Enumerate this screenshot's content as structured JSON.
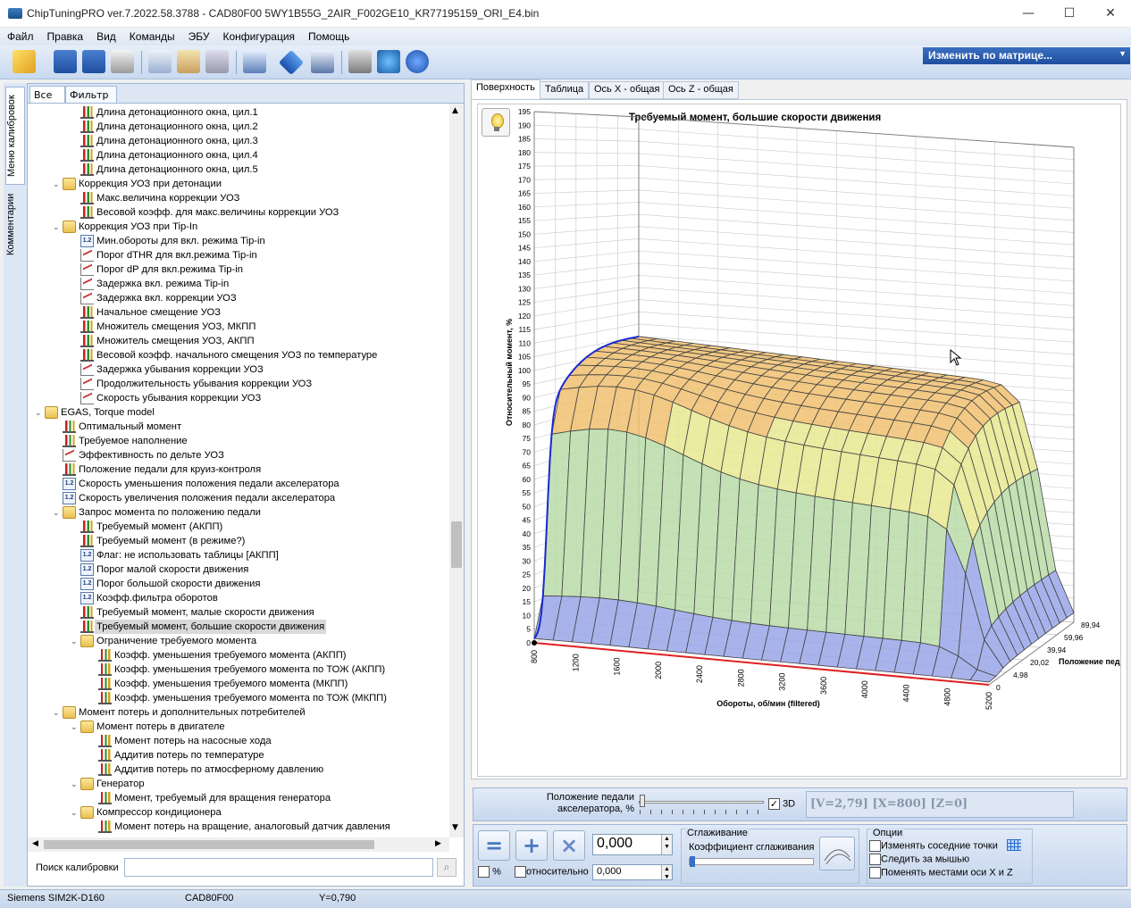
{
  "window": {
    "title": "ChipTuningPRO ver.7.2022.58.3788 - CAD80F00 5WY1B55G_2AIR_F002GE10_KR77195159_ORI_E4.bin",
    "minimize": "—",
    "maximize": "☐",
    "close": "✕"
  },
  "menu": [
    "Файл",
    "Правка",
    "Вид",
    "Команды",
    "ЭБУ",
    "Конфигурация",
    "Помощь"
  ],
  "matrix_button": "Изменить по матрице...",
  "side_tabs": [
    "Меню калибровок",
    "Комментарии"
  ],
  "filter_tabs": [
    "Все",
    "Фильтр"
  ],
  "tree": [
    {
      "label": "Длина детонационного окна, цил.1",
      "icon": "chart-icon",
      "level": 4
    },
    {
      "label": "Длина детонационного окна, цил.2",
      "icon": "chart-icon",
      "level": 4
    },
    {
      "label": "Длина детонационного окна, цил.3",
      "icon": "chart-icon",
      "level": 4
    },
    {
      "label": "Длина детонационного окна, цил.4",
      "icon": "chart-icon",
      "level": 4
    },
    {
      "label": "Длина детонационного окна, цил.5",
      "icon": "chart-icon",
      "level": 4
    },
    {
      "label": "Коррекция УОЗ при детонации",
      "icon": "folder-icon",
      "level": 3,
      "exp": "⌄"
    },
    {
      "label": "Макс.величина коррекции УОЗ",
      "icon": "chart-icon",
      "level": 4
    },
    {
      "label": "Весовой коэфф. для макс.величины коррекции УОЗ",
      "icon": "chart-icon",
      "level": 4
    },
    {
      "label": "Коррекция УОЗ при Tip-In",
      "icon": "folder-icon",
      "level": 3,
      "exp": "⌄"
    },
    {
      "label": "Мин.обороты для вкл. режима Tip-in",
      "icon": "number-icon",
      "level": 4
    },
    {
      "label": "Порог dTHR для вкл.режима Tip-in",
      "icon": "curve-icon",
      "level": 4
    },
    {
      "label": "Порог dP для вкл.режима Tip-in",
      "icon": "curve-icon",
      "level": 4
    },
    {
      "label": "Задержка вкл. режима Tip-in",
      "icon": "curve-icon",
      "level": 4
    },
    {
      "label": "Задержка вкл. коррекции УОЗ",
      "icon": "curve-icon",
      "level": 4
    },
    {
      "label": "Начальное смещение УОЗ",
      "icon": "chart-icon",
      "level": 4
    },
    {
      "label": "Множитель смещения УОЗ, МКПП",
      "icon": "chart-icon",
      "level": 4
    },
    {
      "label": "Множитель смещения УОЗ, АКПП",
      "icon": "chart-icon",
      "level": 4
    },
    {
      "label": "Весовой коэфф. начального смещения УОЗ по температуре",
      "icon": "chart-icon",
      "level": 4
    },
    {
      "label": "Задержка убывания коррекции УОЗ",
      "icon": "curve-icon",
      "level": 4
    },
    {
      "label": "Продолжительность убывания коррекции УОЗ",
      "icon": "curve-icon",
      "level": 4
    },
    {
      "label": "Скорость убывания коррекции УОЗ",
      "icon": "curve-icon",
      "level": 4
    },
    {
      "label": "EGAS, Torque model",
      "icon": "folder-icon",
      "level": 2,
      "exp": "⌄"
    },
    {
      "label": "Оптимальный момент",
      "icon": "chart-icon",
      "level": 3
    },
    {
      "label": "Требуемое наполнение",
      "icon": "chart-icon",
      "level": 3
    },
    {
      "label": "Эффективность по дельте УОЗ",
      "icon": "curve-icon",
      "level": 3
    },
    {
      "label": "Положение педали для круиз-контроля",
      "icon": "chart-icon",
      "level": 3
    },
    {
      "label": "Скорость уменьшения положения педали акселератора",
      "icon": "number-icon",
      "level": 3
    },
    {
      "label": "Скорость увеличения положения педали акселератора",
      "icon": "number-icon",
      "level": 3
    },
    {
      "label": "Запрос момента по положению педали",
      "icon": "folder-icon",
      "level": 3,
      "exp": "⌄"
    },
    {
      "label": "Требуемый момент (АКПП)",
      "icon": "chart-icon",
      "level": 4
    },
    {
      "label": "Требуемый момент (в режиме?)",
      "icon": "chart-icon",
      "level": 4
    },
    {
      "label": "Флаг: не использовать таблицы [АКПП]",
      "icon": "number-icon",
      "level": 4
    },
    {
      "label": "Порог малой скорости движения",
      "icon": "number-icon",
      "level": 4
    },
    {
      "label": "Порог большой скорости движения",
      "icon": "number-icon",
      "level": 4
    },
    {
      "label": "Коэфф.фильтра оборотов",
      "icon": "number-icon",
      "level": 4
    },
    {
      "label": "Требуемый момент, малые скорости движения",
      "icon": "chart-icon",
      "level": 4
    },
    {
      "label": "Требуемый момент, большие скорости движения",
      "icon": "chart-icon",
      "level": 4,
      "selected": true
    },
    {
      "label": "Ограничение требуемого момента",
      "icon": "folder-icon",
      "level": 4,
      "exp": "⌄"
    },
    {
      "label": "Коэфф. уменьшения требуемого момента (АКПП)",
      "icon": "chart-icon",
      "level": 5
    },
    {
      "label": "Коэфф. уменьшения требуемого момента по ТОЖ (АКПП)",
      "icon": "chart-icon",
      "level": 5
    },
    {
      "label": "Коэфф. уменьшения требуемого момента (МКПП)",
      "icon": "chart-icon",
      "level": 5
    },
    {
      "label": "Коэфф. уменьшения требуемого момента по ТОЖ (МКПП)",
      "icon": "chart-icon",
      "level": 5
    },
    {
      "label": "Момент потерь и дополнительных потребителей",
      "icon": "folder-icon",
      "level": 3,
      "exp": "⌄"
    },
    {
      "label": "Момент потерь в двигателе",
      "icon": "folder-icon",
      "level": 4,
      "exp": "⌄"
    },
    {
      "label": "Момент потерь на насосные хода",
      "icon": "chart-icon",
      "level": 5
    },
    {
      "label": "Аддитив потерь по температуре",
      "icon": "chart-icon",
      "level": 5
    },
    {
      "label": "Аддитив потерь по атмосферному давлению",
      "icon": "chart-icon",
      "level": 5
    },
    {
      "label": "Генератор",
      "icon": "folder-icon",
      "level": 4,
      "exp": "⌄"
    },
    {
      "label": "Момент, требуемый для вращения генератора",
      "icon": "chart-icon",
      "level": 5
    },
    {
      "label": "Компрессор кондиционера",
      "icon": "folder-icon",
      "level": 4,
      "exp": "⌄"
    },
    {
      "label": "Момент потерь на вращение, аналоговый датчик давления",
      "icon": "chart-icon",
      "level": 5
    }
  ],
  "search": {
    "label": "Поиск калибровки",
    "value": ""
  },
  "view_tabs": [
    "Поверхность",
    "Таблица",
    "Ось X - общая",
    "Ось Z - общая"
  ],
  "chart_data": {
    "type": "surface",
    "title": "Требуемый момент, большие скорости движения",
    "ylabel": "Относительный момент, %",
    "xlabel": "Обороты, об/мин (filtered)",
    "zlabel": "Положение педа",
    "x_ticks": [
      "800",
      "1200",
      "1600",
      "2000",
      "2400",
      "2800",
      "3200",
      "3600",
      "4000",
      "4400",
      "4800",
      "5200"
    ],
    "z_ticks": [
      "0",
      "4,98",
      "20,02",
      "39,94",
      "59,96",
      "89,94"
    ],
    "y_ticks": [
      "0",
      "5",
      "10",
      "15",
      "20",
      "25",
      "30",
      "35",
      "40",
      "45",
      "50",
      "55",
      "60",
      "65",
      "70",
      "75",
      "80",
      "85",
      "90",
      "95",
      "100",
      "105",
      "110",
      "115",
      "120",
      "125",
      "130",
      "135",
      "140",
      "145",
      "150",
      "155",
      "160",
      "165",
      "170",
      "175",
      "180",
      "185",
      "190",
      "195"
    ],
    "ylim": [
      0,
      195
    ],
    "colors": [
      "#9aa6e8",
      "#b8dca8",
      "#e8e890",
      "#f0c070",
      "#e8a060"
    ]
  },
  "controls": {
    "pedal_label": "Положение педали акселератора, %",
    "check_3d": "3D",
    "readout": "[V=2,79] [X=800] [Z=0]",
    "value": "0,000",
    "percent": "%",
    "relative": "относительно",
    "relative_value": "0,000",
    "smoothing_title": "Сглаживание",
    "smoothing_label": "Коэффициент сглаживания",
    "options_title": "Опции",
    "options": [
      "Изменять соседние точки",
      "Следить за мышью",
      "Поменять местами оси X и Z"
    ]
  },
  "status": [
    "Siemens SIM2K-D160",
    "CAD80F00",
    "Y=0,790"
  ]
}
